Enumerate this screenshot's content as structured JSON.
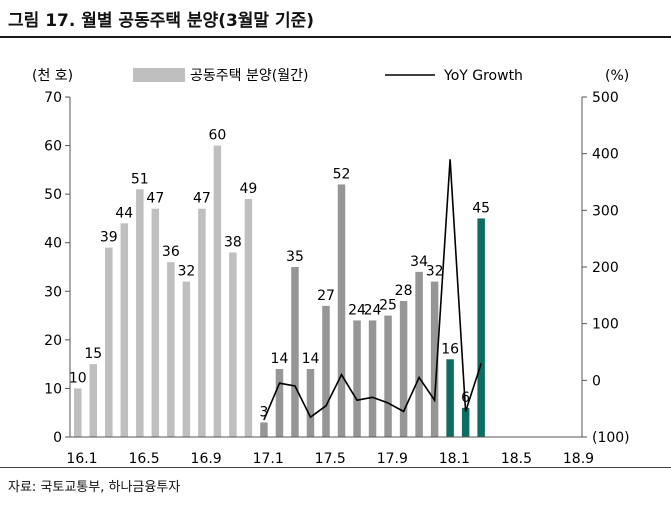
{
  "header": {
    "title": "그림 17. 월별 공동주택 분양(3월말 기준)"
  },
  "footer": {
    "source": "자료: 국토교통부, 하나금융투자"
  },
  "chart_data": {
    "type": "bar",
    "left_axis_unit": "(천 호)",
    "right_axis_unit": "(%)",
    "left_ylim": [
      0,
      70
    ],
    "right_ylim": [
      -100,
      500
    ],
    "left_ticks": [
      "0",
      "10",
      "20",
      "30",
      "40",
      "50",
      "60",
      "70"
    ],
    "right_ticks": [
      "(100)",
      "0",
      "100",
      "200",
      "300",
      "400",
      "500"
    ],
    "x_ticks": [
      "16.1",
      "16.5",
      "16.9",
      "17.1",
      "17.5",
      "17.9",
      "18.1",
      "18.5",
      "18.9"
    ],
    "n_slots": 33,
    "legend": {
      "bar": "공동주택 분양(월간)",
      "line": "YoY Growth"
    },
    "colors": {
      "bar_2016": "#bfbfbf",
      "bar_2017": "#969696",
      "bar_2018": "#0e6d63",
      "line": "#000000"
    },
    "series": [
      {
        "name": "공동주택 분양(월간)",
        "values": [
          10,
          15,
          39,
          44,
          51,
          47,
          36,
          32,
          47,
          60,
          38,
          49,
          3,
          14,
          35,
          14,
          27,
          52,
          24,
          24,
          25,
          28,
          34,
          32,
          16,
          6,
          45
        ],
        "labels": [
          "10",
          "15",
          "39",
          "44",
          "51",
          "47",
          "36",
          "32",
          "47",
          "60",
          "38",
          "49",
          "3",
          "14",
          "35",
          "14",
          "27",
          "52",
          "24",
          "24",
          "25",
          "28",
          "34",
          "32",
          "16",
          "6",
          "45"
        ]
      },
      {
        "name": "YoY Growth",
        "start_index": 12,
        "values": [
          -70,
          -5,
          -10,
          -65,
          -45,
          10,
          -35,
          -30,
          -40,
          -55,
          5,
          -35,
          390,
          -55,
          30
        ]
      }
    ]
  }
}
